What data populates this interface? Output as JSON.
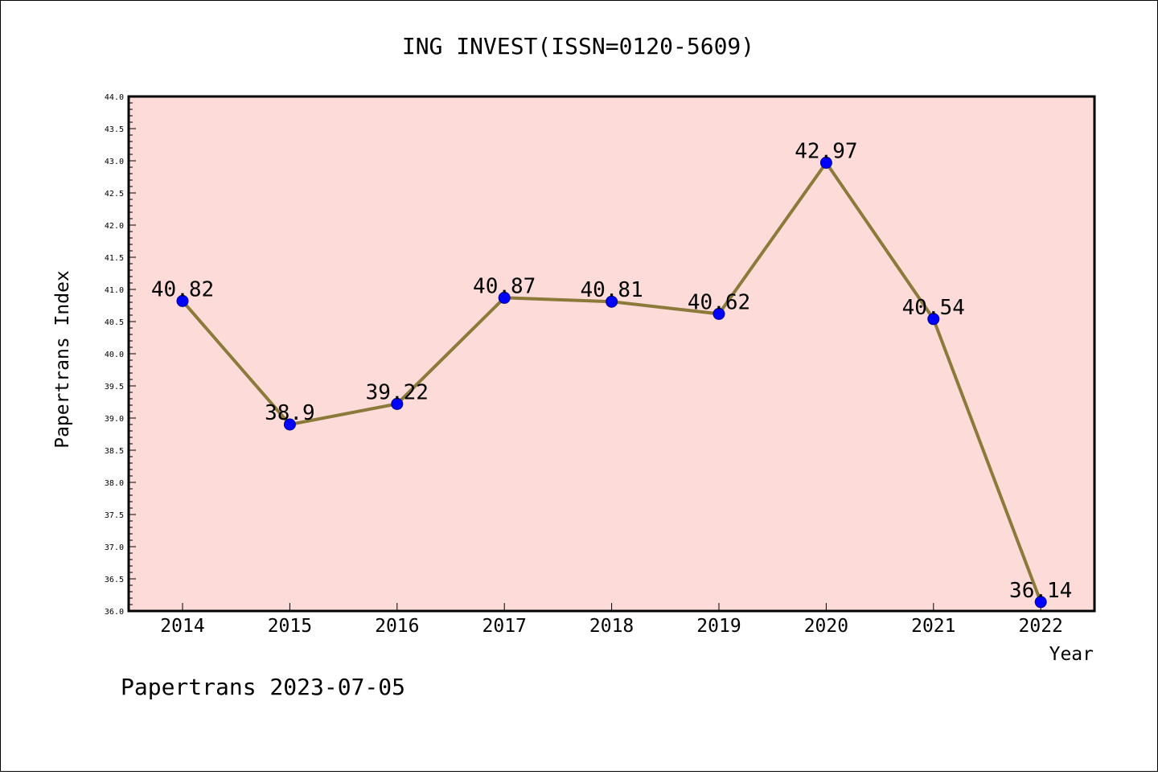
{
  "chart_data": {
    "type": "line",
    "title": "ING INVEST(ISSN=0120-5609)",
    "xlabel": "Year",
    "ylabel": "Papertrans Index",
    "categories": [
      "2014",
      "2015",
      "2016",
      "2017",
      "2018",
      "2019",
      "2020",
      "2021",
      "2022"
    ],
    "series": [
      {
        "values": [
          40.82,
          38.9,
          39.22,
          40.87,
          40.81,
          40.62,
          42.97,
          40.54,
          36.14
        ],
        "labels": [
          "40.82",
          "38.9",
          "39.22",
          "40.87",
          "40.81",
          "40.62",
          "42.97",
          "40.54",
          "36.14"
        ]
      }
    ],
    "ylim": [
      36.0,
      44.0
    ],
    "yticks": [
      "36.0",
      "36.5",
      "37.0",
      "37.5",
      "38.0",
      "38.5",
      "39.0",
      "39.5",
      "40.0",
      "40.5",
      "41.0",
      "41.5",
      "42.0",
      "42.5",
      "43.0",
      "43.5",
      "44.0"
    ],
    "grid": false,
    "colors": {
      "plot_background": "#fddbd8",
      "line": "#8b7a3a",
      "marker": "#0000ff"
    }
  },
  "footer": "Papertrans 2023-07-05"
}
